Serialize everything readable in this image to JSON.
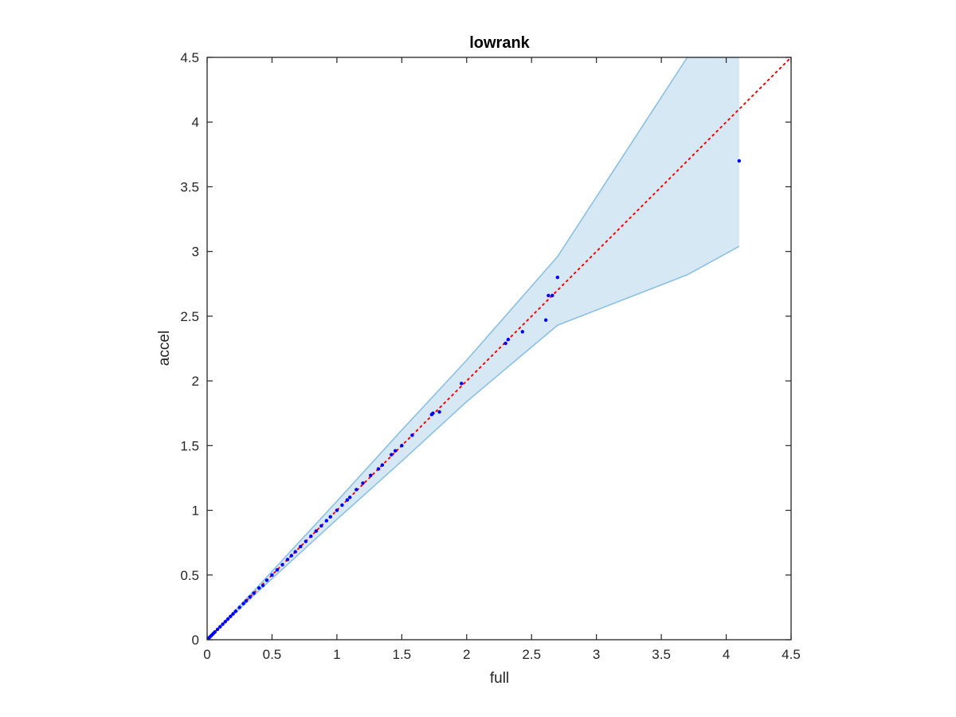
{
  "chart_data": {
    "type": "scatter",
    "title": "lowrank",
    "xlabel": "full",
    "ylabel": "accel",
    "xlim": [
      0,
      4.5
    ],
    "ylim": [
      0,
      4.5
    ],
    "xticks": [
      "0",
      "0.5",
      "1",
      "1.5",
      "2",
      "2.5",
      "3",
      "3.5",
      "4",
      "4.5"
    ],
    "yticks": [
      "0",
      "0.5",
      "1",
      "1.5",
      "2",
      "2.5",
      "3",
      "3.5",
      "4",
      "4.5"
    ],
    "grid": false,
    "legend": false,
    "colors": {
      "points": "#0000ff",
      "reference_line": "#ff0000",
      "band_fill": "#d6e8f4",
      "band_edge": "#8cc0e0"
    },
    "reference_line": {
      "style": "dotted",
      "x": [
        0,
        4.5
      ],
      "y": [
        0,
        4.5
      ]
    },
    "band": {
      "x": [
        0,
        0.4,
        1.0,
        1.5,
        2.0,
        2.7,
        3.7,
        4.1
      ],
      "upper": [
        0,
        0.42,
        1.07,
        1.62,
        2.16,
        2.96,
        4.5,
        4.5
      ],
      "lower": [
        0,
        0.38,
        0.93,
        1.38,
        1.84,
        2.43,
        2.82,
        3.04
      ]
    },
    "points": {
      "x": [
        0.0,
        0.01,
        0.02,
        0.03,
        0.04,
        0.05,
        0.06,
        0.08,
        0.1,
        0.12,
        0.14,
        0.16,
        0.18,
        0.2,
        0.22,
        0.25,
        0.28,
        0.3,
        0.33,
        0.36,
        0.4,
        0.43,
        0.46,
        0.5,
        0.54,
        0.58,
        0.62,
        0.65,
        0.68,
        0.72,
        0.76,
        0.8,
        0.84,
        0.88,
        0.92,
        0.95,
        1.0,
        1.04,
        1.08,
        1.1,
        1.15,
        1.2,
        1.26,
        1.32,
        1.35,
        1.42,
        1.45,
        1.5,
        1.58,
        1.73,
        1.74,
        1.79,
        1.96,
        2.3,
        2.32,
        2.43,
        2.61,
        2.63,
        2.66,
        2.7,
        4.1
      ],
      "y": [
        0.0,
        0.01,
        0.02,
        0.03,
        0.04,
        0.05,
        0.06,
        0.08,
        0.1,
        0.12,
        0.14,
        0.16,
        0.18,
        0.2,
        0.22,
        0.25,
        0.28,
        0.3,
        0.33,
        0.36,
        0.4,
        0.42,
        0.46,
        0.5,
        0.54,
        0.58,
        0.62,
        0.65,
        0.68,
        0.72,
        0.76,
        0.8,
        0.84,
        0.88,
        0.92,
        0.95,
        1.0,
        1.04,
        1.08,
        1.1,
        1.16,
        1.21,
        1.27,
        1.32,
        1.35,
        1.43,
        1.46,
        1.5,
        1.58,
        1.74,
        1.75,
        1.76,
        1.98,
        2.29,
        2.32,
        2.38,
        2.47,
        2.66,
        2.66,
        2.8,
        3.7
      ]
    }
  }
}
